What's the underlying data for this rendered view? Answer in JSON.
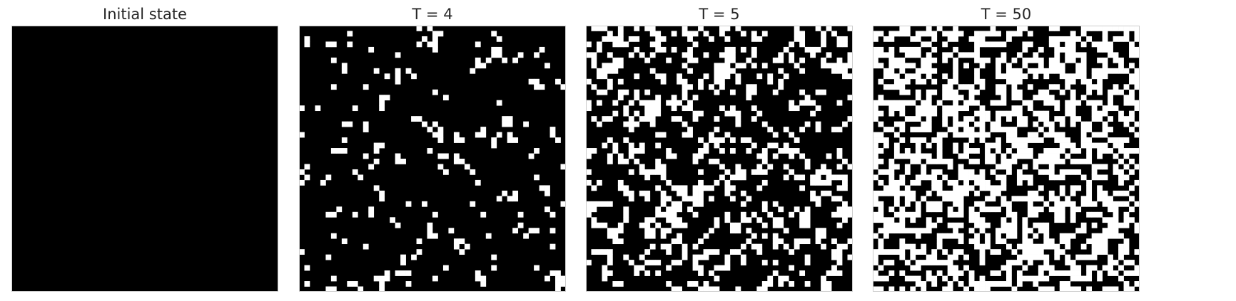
{
  "figure": {
    "panel_titles": [
      "Initial state",
      "T = 4",
      "T = 5",
      "T = 50"
    ]
  },
  "chart_data": [
    {
      "type": "heatmap",
      "title": "Initial state",
      "grid_size": 50,
      "colormap": {
        "0": "#000000",
        "1": "#ffffff"
      },
      "fill_fraction": 0.0,
      "axes": "off",
      "seed": 0
    },
    {
      "type": "heatmap",
      "title": "T = 4",
      "grid_size": 50,
      "colormap": {
        "0": "#000000",
        "1": "#ffffff"
      },
      "fill_fraction": 0.09,
      "axes": "off",
      "seed": 4
    },
    {
      "type": "heatmap",
      "title": "T = 5",
      "grid_size": 50,
      "colormap": {
        "0": "#000000",
        "1": "#ffffff"
      },
      "fill_fraction": 0.28,
      "axes": "off",
      "seed": 5
    },
    {
      "type": "heatmap",
      "title": "T = 50",
      "grid_size": 50,
      "colormap": {
        "0": "#000000",
        "1": "#ffffff"
      },
      "fill_fraction": 0.5,
      "axes": "off",
      "seed": 50
    }
  ]
}
